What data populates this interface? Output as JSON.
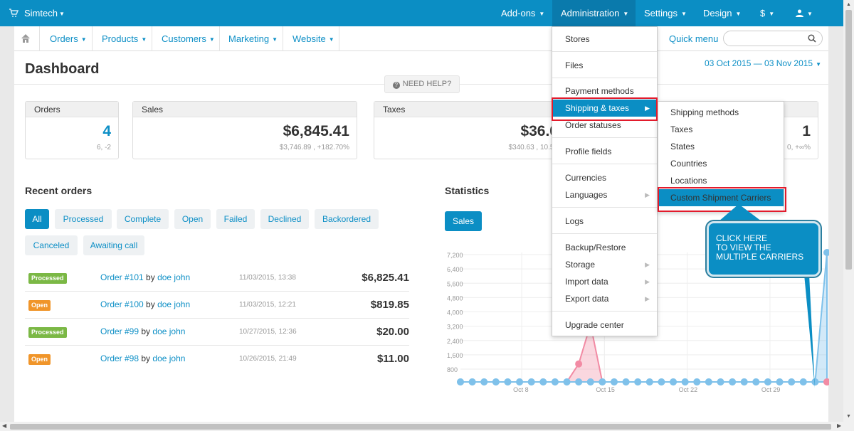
{
  "topbar": {
    "brand": "Simtech",
    "nav": [
      {
        "label": "Add-ons"
      },
      {
        "label": "Administration"
      },
      {
        "label": "Settings"
      },
      {
        "label": "Design"
      },
      {
        "label": "$"
      },
      {
        "label": ""
      }
    ]
  },
  "secondary_nav": {
    "items": [
      "Orders",
      "Products",
      "Customers",
      "Marketing",
      "Website"
    ],
    "quick_menu": "Quick menu",
    "search_placeholder": ""
  },
  "dashboard": {
    "title": "Dashboard",
    "date_range": "03 Oct 2015 — 03 Nov 2015",
    "help": "NEED HELP?",
    "cards": [
      {
        "title": "Orders",
        "value": "4",
        "sub": "6, -2"
      },
      {
        "title": "Sales",
        "value": "$6,845.41",
        "sub": "$3,746.89 , +182.70%"
      },
      {
        "title": "Taxes",
        "value": "$36.0",
        "sub": "$340.63 , 10.57"
      },
      {
        "title": "",
        "value": "1",
        "sub": "0, +∞%"
      }
    ]
  },
  "recent_orders": {
    "title": "Recent orders",
    "filters": [
      "All",
      "Processed",
      "Complete",
      "Open",
      "Failed",
      "Declined",
      "Backordered",
      "Canceled",
      "Awaiting call"
    ],
    "active_filter": "All",
    "orders": [
      {
        "status": "Processed",
        "status_color": "#7bb845",
        "number": "Order #101",
        "by": "by",
        "customer": "doe john",
        "date": "11/03/2015, 13:38",
        "amount": "$6,825.41"
      },
      {
        "status": "Open",
        "status_color": "#f0952a",
        "number": "Order #100",
        "by": "by",
        "customer": "doe john",
        "date": "11/03/2015, 12:21",
        "amount": "$819.85"
      },
      {
        "status": "Processed",
        "status_color": "#7bb845",
        "number": "Order #99",
        "by": "by",
        "customer": "doe john",
        "date": "10/27/2015, 12:36",
        "amount": "$20.00"
      },
      {
        "status": "Open",
        "status_color": "#f0952a",
        "number": "Order #98",
        "by": "by",
        "customer": "doe john",
        "date": "10/26/2015, 21:49",
        "amount": "$11.00"
      }
    ]
  },
  "statistics": {
    "title": "Statistics",
    "tab": "Sales"
  },
  "chart_data": {
    "type": "area",
    "title": "",
    "xlabel": "",
    "ylabel": "",
    "ylim": [
      0,
      7200
    ],
    "y_ticks": [
      "7,200",
      "6,400",
      "5,600",
      "4,800",
      "4,000",
      "3,200",
      "2,400",
      "1,600",
      "800"
    ],
    "x_tick_labels": [
      "Oct 8",
      "Oct 15",
      "Oct 22",
      "Oct 29"
    ],
    "series": [
      {
        "color": "#f28ba4",
        "values": [
          0,
          0,
          0,
          0,
          0,
          0,
          0,
          0,
          0,
          0,
          1000,
          3200,
          0,
          0,
          0,
          0,
          0,
          0,
          0,
          0,
          0,
          0,
          0,
          0,
          0,
          0,
          0,
          0,
          0,
          0,
          0,
          0
        ]
      },
      {
        "color": "#7fc1ea",
        "values": [
          0,
          0,
          0,
          0,
          0,
          0,
          0,
          0,
          0,
          0,
          0,
          0,
          0,
          0,
          0,
          0,
          0,
          0,
          0,
          0,
          0,
          0,
          0,
          0,
          0,
          0,
          0,
          0,
          0,
          0,
          0,
          7200
        ]
      }
    ]
  },
  "admin_menu": {
    "items": [
      {
        "label": "Stores",
        "arrow": false
      },
      {
        "label": "Files",
        "arrow": false
      },
      {
        "label": "Payment methods",
        "arrow": false
      },
      {
        "label": "Shipping & taxes",
        "arrow": true,
        "active": true
      },
      {
        "label": "Order statuses",
        "arrow": false
      },
      {
        "label": "Profile fields",
        "arrow": false
      },
      {
        "label": "Currencies",
        "arrow": false
      },
      {
        "label": "Languages",
        "arrow": true
      },
      {
        "label": "Logs",
        "arrow": false
      },
      {
        "label": "Backup/Restore",
        "arrow": false
      },
      {
        "label": "Storage",
        "arrow": true
      },
      {
        "label": "Import data",
        "arrow": true
      },
      {
        "label": "Export data",
        "arrow": true
      },
      {
        "label": "Upgrade center",
        "arrow": false
      }
    ]
  },
  "shipping_submenu": {
    "items": [
      "Shipping methods",
      "Taxes",
      "States",
      "Countries",
      "Locations",
      "Custom Shipment Carriers"
    ],
    "active": "Custom Shipment Carriers"
  },
  "callout": {
    "text": "CLICK HERE\nTO VIEW THE\nMULTIPLE CARRIERS"
  },
  "colors": {
    "accent": "#0b8ec4",
    "highlight": "#e21b2c",
    "processed": "#7bb845",
    "open": "#f0952a"
  }
}
